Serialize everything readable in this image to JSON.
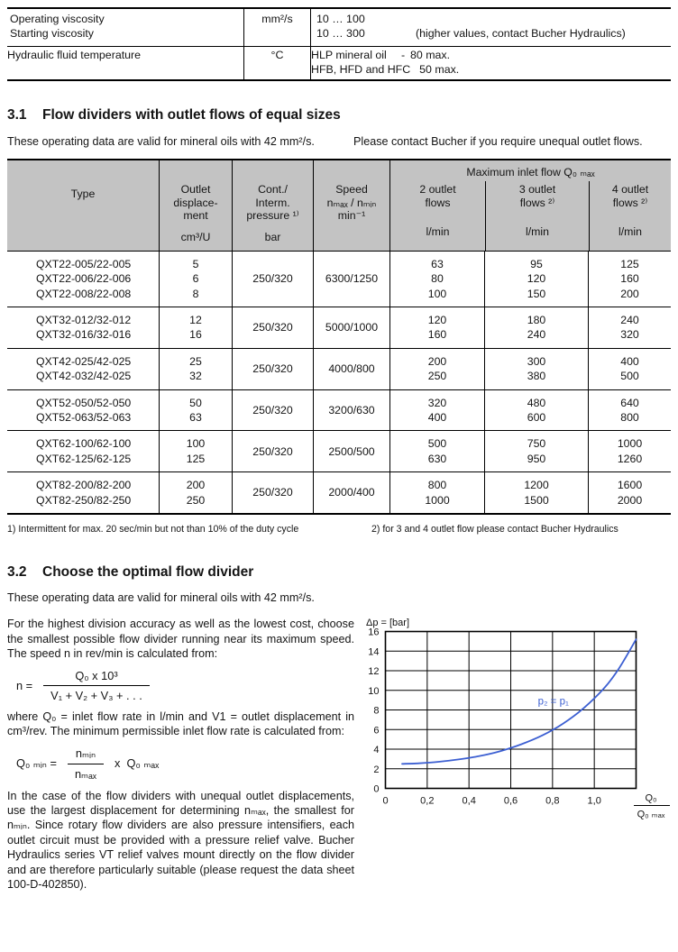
{
  "colors": {
    "header_gray": "#c3c3c3",
    "curve_blue": "#3c5fd2",
    "text_black": "#141414"
  },
  "spec_table": {
    "rows": [
      {
        "name_lines": [
          "Operating viscosity",
          "Starting viscosity"
        ],
        "unit": "mm²/s",
        "values": [
          {
            "label": "10 … 100",
            "prefix": "",
            "rest": ""
          },
          {
            "label": "10 … 300",
            "prefix": "",
            "rest": "(higher values, contact Bucher Hydraulics)"
          }
        ]
      },
      {
        "name_lines": [
          "Hydraulic fluid temperature"
        ],
        "unit": "°C",
        "values": [
          {
            "label": "HLP mineral oil",
            "prefix": "-",
            "rest": "80 max."
          },
          {
            "label": "HFB, HFD and HFC",
            "prefix": "",
            "rest": "50 max."
          }
        ]
      }
    ]
  },
  "section31": {
    "number": "3.1",
    "title": "Flow dividers with outlet flows of equal sizes",
    "intro_left": "These operating data are valid for mineral oils with 42 mm²/s.",
    "intro_right": "Please contact Bucher if you require unequal outlet flows."
  },
  "main_table": {
    "headers": {
      "type": "Type",
      "col2_lines": [
        "Outlet",
        "displace-",
        "ment"
      ],
      "col2_unit": "cm³/U",
      "col3_lines": [
        "Cont./",
        "Interm.",
        "pressure ¹⁾"
      ],
      "col3_unit": "bar",
      "col4_lines": [
        "Speed",
        "nₘₐₓ / nₘᵢₙ",
        "min⁻¹"
      ],
      "group": "Maximum inlet flow Q₀ ₘₐₓ",
      "flow_cols": [
        {
          "lines": [
            "2 outlet",
            "flows"
          ],
          "unit": "l/min"
        },
        {
          "lines": [
            "3 outlet",
            "flows ²⁾"
          ],
          "unit": "l/min"
        },
        {
          "lines": [
            "4 outlet",
            "flows ²⁾"
          ],
          "unit": "l/min"
        }
      ]
    },
    "groups": [
      {
        "types": [
          "QXT22-005/22-005",
          "QXT22-006/22-006",
          "QXT22-008/22-008"
        ],
        "displacement": [
          "5",
          "6",
          "8"
        ],
        "pressure": "250/320",
        "speed": "6300/1250",
        "flows2": [
          "63",
          "80",
          "100"
        ],
        "flows3": [
          "95",
          "120",
          "150"
        ],
        "flows4": [
          "125",
          "160",
          "200"
        ]
      },
      {
        "types": [
          "QXT32-012/32-012",
          "QXT32-016/32-016"
        ],
        "displacement": [
          "12",
          "16"
        ],
        "pressure": "250/320",
        "speed": "5000/1000",
        "flows2": [
          "120",
          "160"
        ],
        "flows3": [
          "180",
          "240"
        ],
        "flows4": [
          "240",
          "320"
        ]
      },
      {
        "types": [
          "QXT42-025/42-025",
          "QXT42-032/42-025"
        ],
        "displacement": [
          "25",
          "32"
        ],
        "pressure": "250/320",
        "speed": "4000/800",
        "flows2": [
          "200",
          "250"
        ],
        "flows3": [
          "300",
          "380"
        ],
        "flows4": [
          "400",
          "500"
        ]
      },
      {
        "types": [
          "QXT52-050/52-050",
          "QXT52-063/52-063"
        ],
        "displacement": [
          "50",
          "63"
        ],
        "pressure": "250/320",
        "speed": "3200/630",
        "flows2": [
          "320",
          "400"
        ],
        "flows3": [
          "480",
          "600"
        ],
        "flows4": [
          "640",
          "800"
        ]
      },
      {
        "types": [
          "QXT62-100/62-100",
          "QXT62-125/62-125"
        ],
        "displacement": [
          "100",
          "125"
        ],
        "pressure": "250/320",
        "speed": "2500/500",
        "flows2": [
          "500",
          "630"
        ],
        "flows3": [
          "750",
          "950"
        ],
        "flows4": [
          "1000",
          "1260"
        ]
      },
      {
        "types": [
          "QXT82-200/82-200",
          "QXT82-250/82-250"
        ],
        "displacement": [
          "200",
          "250"
        ],
        "pressure": "250/320",
        "speed": "2000/400",
        "flows2": [
          "800",
          "1000"
        ],
        "flows3": [
          "1200",
          "1500"
        ],
        "flows4": [
          "1600",
          "2000"
        ]
      }
    ],
    "footnote1": "1) Intermittent for max. 20 sec/min but not than 10% of the duty cycle",
    "footnote2": "2) for 3 and 4 outlet flow please contact Bucher Hydraulics"
  },
  "section32": {
    "number": "3.2",
    "title": "Choose the optimal flow divider",
    "intro": "These operating data are valid for mineral oils with 42 mm²/s.",
    "para1": "For the highest division accuracy as well as the lowest cost, choose the smallest possible flow divider running near its maximum speed. The speed n in rev/min is calculated from:",
    "formula1": {
      "lhs": "n =",
      "num": "Q₀ x 10³",
      "den": "V₁ + V₂ + V₃ + . . ."
    },
    "para2": "where Q₀ = inlet flow rate in l/min and V1 = outlet displacement in cm³/rev. The minimum permissible inlet flow rate is calculated from:",
    "formula2": {
      "lhs": "Q₀ ₘᵢₙ =",
      "num": "nₘᵢₙ",
      "den": "nₘₐₓ",
      "rhs": "x  Q₀ ₘₐₓ"
    },
    "para3": "In the case of the flow dividers with unequal outlet displacements, use the largest displacement for determining nₘₐₓ, the smallest for nₘᵢₙ. Since rotary flow dividers are also pressure intensifiers, each outlet circuit must be provided with a pressure relief valve. Bucher Hydraulics series VT relief valves mount directly on the flow divider and are therefore particularly suitable (please request the data sheet 100-D-402850)."
  },
  "chart_data": {
    "type": "line",
    "title": "Δp = [bar]",
    "xlabel_num": "Q₀",
    "xlabel_den": "Q₀ ₘₐₓ",
    "xlim": [
      0,
      1.2
    ],
    "ylim": [
      0,
      16
    ],
    "grid": true,
    "legend_position": "none",
    "xticks": [
      {
        "v": 0,
        "label": "0"
      },
      {
        "v": 0.2,
        "label": "0,2"
      },
      {
        "v": 0.4,
        "label": "0,4"
      },
      {
        "v": 0.6,
        "label": "0,6"
      },
      {
        "v": 0.8,
        "label": "0,8"
      },
      {
        "v": 1.0,
        "label": "1,0"
      },
      {
        "v": 1.2,
        "label": null
      }
    ],
    "yticks": [
      0,
      2,
      4,
      6,
      8,
      10,
      12,
      14,
      16
    ],
    "annotation": {
      "text": "p₂ = p₁",
      "x": 0.73,
      "y": 8.9
    },
    "series": [
      {
        "name": "p₂ = p₁",
        "color": "#3c5fd2",
        "points": [
          [
            0.08,
            2.5
          ],
          [
            0.15,
            2.55
          ],
          [
            0.25,
            2.7
          ],
          [
            0.35,
            2.95
          ],
          [
            0.45,
            3.3
          ],
          [
            0.55,
            3.8
          ],
          [
            0.65,
            4.5
          ],
          [
            0.75,
            5.4
          ],
          [
            0.85,
            6.6
          ],
          [
            0.95,
            8.2
          ],
          [
            1.05,
            10.3
          ],
          [
            1.12,
            12.3
          ],
          [
            1.2,
            15.2
          ]
        ]
      }
    ]
  }
}
